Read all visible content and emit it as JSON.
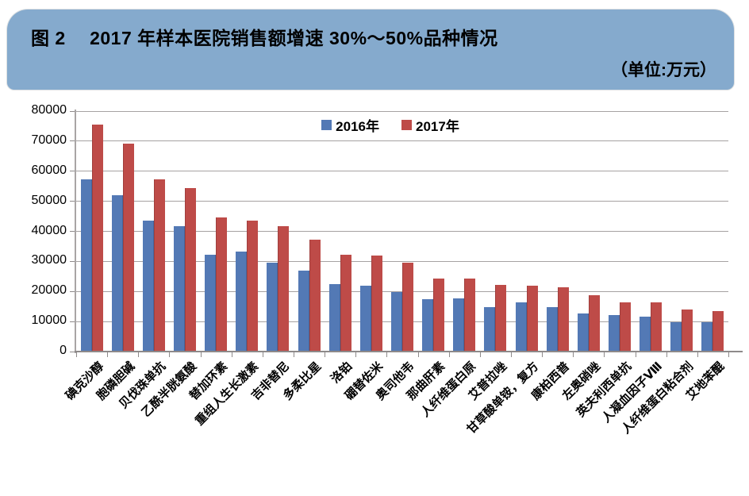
{
  "header": {
    "title": "图 2　 2017 年样本医院销售额增速 30%～50%品种情况",
    "unit_label": "（单位:万元）"
  },
  "chart_data": {
    "type": "bar",
    "title": "图 2　 2017 年样本医院销售额增速 30%～50%品种情况",
    "unit_label": "（单位:万元）",
    "categories": [
      "碘克沙醇",
      "胞磷胆碱",
      "贝伐珠单抗",
      "乙酰半胱氨酸",
      "替加环素",
      "重组人生长激素",
      "吉非替尼",
      "多柔比星",
      "洛铂",
      "硼替佐米",
      "奥司他韦",
      "那曲肝素",
      "人纤维蛋白原",
      "艾普拉唑",
      "甘草酸单铵，复方",
      "康柏西普",
      "左奥硝唑",
      "英夫利西单抗",
      "人凝血因子Ⅷ",
      "人纤维蛋白粘合剂",
      "艾地苯醌"
    ],
    "series": [
      {
        "name": "2016年",
        "color": "#5379B5",
        "values": [
          57300,
          52000,
          43700,
          41800,
          32100,
          33400,
          29700,
          26900,
          22400,
          22000,
          19900,
          17500,
          17800,
          14800,
          16400,
          14800,
          12800,
          12100,
          11700,
          9900,
          9900
        ]
      },
      {
        "name": "2017年",
        "color": "#BE4B48",
        "values": [
          75600,
          69200,
          57400,
          54400,
          44700,
          43500,
          41800,
          37300,
          32300,
          31900,
          29500,
          24300,
          24400,
          22300,
          22000,
          21500,
          18800,
          16500,
          16300,
          14100,
          13400
        ]
      }
    ],
    "ylim": [
      0,
      80000
    ],
    "ytick_step": 10000,
    "grid": "horizontal",
    "legend_position": "top-center",
    "colors": {
      "header_bg": "#85AACD",
      "gridline": "#A6A2A2",
      "axis": "#8E8A8A"
    }
  }
}
